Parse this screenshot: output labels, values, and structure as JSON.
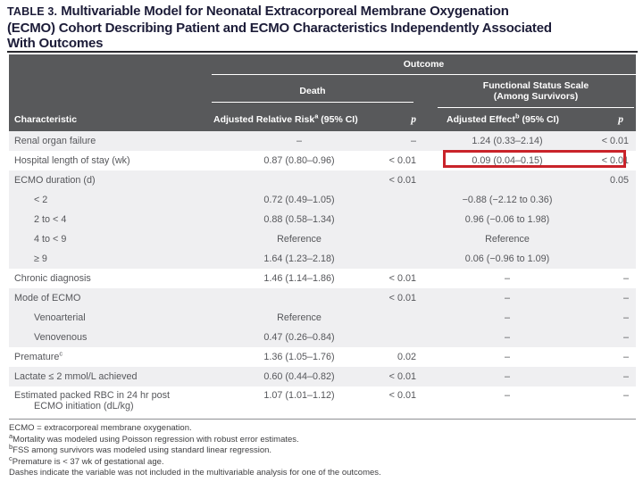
{
  "title": {
    "label": "TABLE 3.",
    "line1": "Multivariable Model for Neonatal Extracorporeal Membrane Oxygenation",
    "line2": "(ECMO) Cohort Describing Patient and ECMO Characteristics Independently Associated",
    "line3": "With Outcomes"
  },
  "table": {
    "outcome_header": "Outcome",
    "death_header": "Death",
    "fss_header_line1": "Functional Status Scale",
    "fss_header_line2": "(Among Survivors)",
    "col_headers": {
      "characteristic": "Characteristic",
      "arr_pre": "Adjusted Relative Risk",
      "arr_sup": "a",
      "arr_post": " (95% CI)",
      "p_death": "p",
      "effect_pre": "Adjusted Effect",
      "effect_sup": "b",
      "effect_post": " (95% CI)",
      "p_fss": "p"
    },
    "rows": [
      {
        "label": "Renal organ failure",
        "indent": false,
        "band": "gray",
        "arr": "–",
        "p1": "–",
        "effect": "1.24 (0.33–2.14)",
        "p2": "< 0.01"
      },
      {
        "label": "Hospital length of stay (wk)",
        "indent": false,
        "band": "white",
        "arr": "0.87 (0.80–0.96)",
        "p1": "< 0.01",
        "effect": "0.09 (0.04–0.15)",
        "p2": "< 0.01",
        "highlight": true
      },
      {
        "label": "ECMO duration (d)",
        "indent": false,
        "band": "gray",
        "arr": "",
        "p1": "< 0.01",
        "effect": "",
        "p2": "0.05"
      },
      {
        "label": "< 2",
        "indent": true,
        "band": "gray",
        "arr": "0.72 (0.49–1.05)",
        "p1": "",
        "effect": "−0.88 (−2.12 to 0.36)",
        "p2": ""
      },
      {
        "label": "2 to < 4",
        "indent": true,
        "band": "gray",
        "arr": "0.88 (0.58–1.34)",
        "p1": "",
        "effect": "0.96 (−0.06 to 1.98)",
        "p2": ""
      },
      {
        "label": "4 to < 9",
        "indent": true,
        "band": "gray",
        "arr": "Reference",
        "p1": "",
        "effect": "Reference",
        "p2": ""
      },
      {
        "label": "≥ 9",
        "indent": true,
        "band": "gray",
        "arr": "1.64 (1.23–2.18)",
        "p1": "",
        "effect": "0.06 (−0.96 to 1.09)",
        "p2": ""
      },
      {
        "label": "Chronic diagnosis",
        "indent": false,
        "band": "white",
        "arr": "1.46 (1.14–1.86)",
        "p1": "< 0.01",
        "effect": "–",
        "p2": "–"
      },
      {
        "label": "Mode of ECMO",
        "indent": false,
        "band": "gray",
        "arr": "",
        "p1": "< 0.01",
        "effect": "–",
        "p2": "–"
      },
      {
        "label": "Venoarterial",
        "indent": true,
        "band": "gray",
        "arr": "Reference",
        "p1": "",
        "effect": "–",
        "p2": "–"
      },
      {
        "label": "Venovenous",
        "indent": true,
        "band": "gray",
        "arr": "0.47 (0.26–0.84)",
        "p1": "",
        "effect": "–",
        "p2": "–"
      },
      {
        "label": "Premature",
        "label_sup": "c",
        "indent": false,
        "band": "white",
        "arr": "1.36 (1.05–1.76)",
        "p1": "0.02",
        "effect": "–",
        "p2": "–"
      },
      {
        "label": "Lactate ≤ 2 mmol/L achieved",
        "indent": false,
        "band": "gray",
        "arr": "0.60 (0.44–0.82)",
        "p1": "< 0.01",
        "effect": "–",
        "p2": "–"
      },
      {
        "label": "Estimated packed RBC in 24 hr post",
        "label_line2": "ECMO initiation (dL/kg)",
        "indent": false,
        "band": "white",
        "arr": "1.07 (1.01–1.12)",
        "p1": "< 0.01",
        "effect": "–",
        "p2": "–",
        "two_line": true
      }
    ]
  },
  "footnotes": [
    {
      "sup": "",
      "text": "ECMO = extracorporeal membrane oxygenation."
    },
    {
      "sup": "a",
      "text": "Mortality was modeled using Poisson regression with robust error estimates."
    },
    {
      "sup": "b",
      "text": "FSS among survivors was modeled using standard linear regression."
    },
    {
      "sup": "c",
      "text": "Premature is < 37 wk of gestational age."
    },
    {
      "sup": "",
      "text": "Dashes indicate the variable was not included in the multivariable analysis for one of the outcomes."
    }
  ],
  "colors": {
    "header_bg": "#58595b",
    "band_gray": "#efeff1",
    "highlight_red": "#c9232a",
    "title_color": "#1c1c38",
    "body_text": "#56575b"
  }
}
